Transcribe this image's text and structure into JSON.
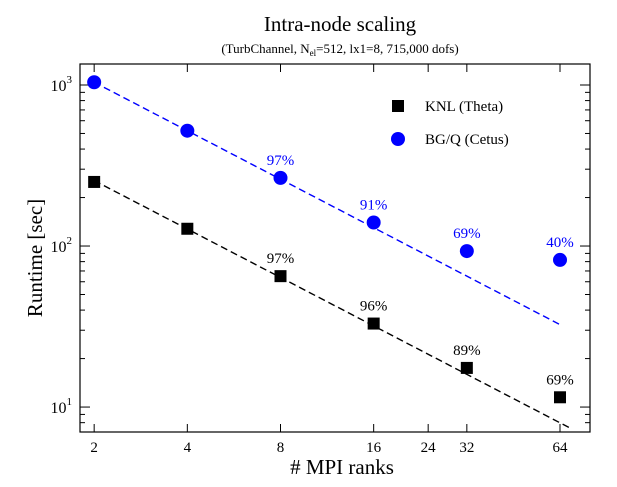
{
  "chart_data": {
    "type": "scatter",
    "title": "Intra-node scaling",
    "subtitle_prefix": "(TurbChannel, N",
    "subtitle_sub": "el",
    "subtitle_suffix": "=512, lx1=8, 715,000 dofs)",
    "xlabel": "# MPI ranks",
    "ylabel": "Runtime [sec]",
    "x_scale": "log",
    "y_scale": "log",
    "xlim": [
      1.8,
      80
    ],
    "ylim": [
      7,
      1350
    ],
    "x_ticks": [
      2,
      4,
      8,
      16,
      24,
      32,
      64
    ],
    "y_ticks": [
      {
        "value": 1000,
        "base": "10",
        "exp": "3"
      },
      {
        "value": 100,
        "base": "10",
        "exp": "2"
      },
      {
        "value": 10,
        "base": "10",
        "exp": "1"
      }
    ],
    "legend_position": "top-right",
    "series": [
      {
        "name": "KNL (Theta)",
        "marker": "square",
        "color": "#000000",
        "x": [
          2,
          4,
          8,
          16,
          32,
          64
        ],
        "y": [
          250,
          128,
          65,
          33,
          17.5,
          11.5
        ],
        "labels": [
          "",
          "",
          "97%",
          "96%",
          "89%",
          "69%"
        ],
        "ideal_line": {
          "x": [
            2,
            70
          ],
          "y": [
            255,
            7.3
          ]
        }
      },
      {
        "name": "BG/Q (Cetus)",
        "marker": "circle",
        "color": "#0000ff",
        "x": [
          2,
          4,
          8,
          16,
          32,
          64
        ],
        "y": [
          1040,
          520,
          265,
          140,
          93,
          82
        ],
        "labels": [
          "",
          "",
          "97%",
          "91%",
          "69%",
          "40%"
        ],
        "ideal_line": {
          "x": [
            2,
            64
          ],
          "y": [
            1040,
            32.5
          ]
        }
      }
    ]
  }
}
